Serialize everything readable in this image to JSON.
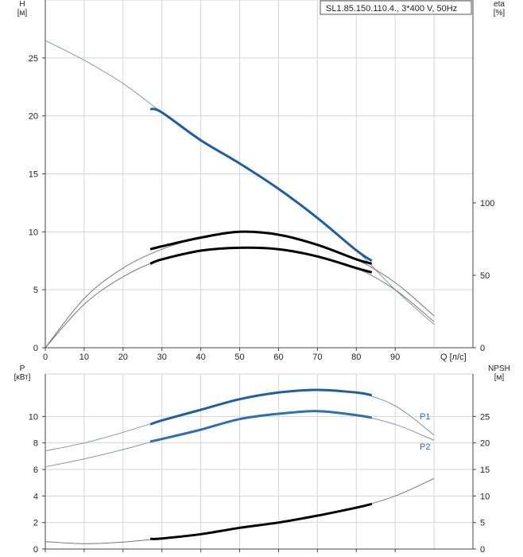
{
  "chart_data": [
    {
      "type": "line",
      "title": "SL1.85.150.110.4., 3*400 V, 50Hz",
      "xlabel": "Q [л/с]",
      "ylabel": "H\n[м]",
      "y2label": "eta\n[%]",
      "xlim": [
        0,
        100
      ],
      "ylim": [
        0,
        30
      ],
      "y2lim": [
        0,
        240
      ],
      "x_ticks": [
        0,
        10,
        20,
        30,
        40,
        50,
        60,
        70,
        80,
        90
      ],
      "y_ticks": [
        0,
        5,
        10,
        15,
        20,
        25
      ],
      "y2_ticks": [
        0,
        50,
        100
      ],
      "grid": true,
      "series": [
        {
          "axis": "left",
          "color": "#8899aa",
          "x": [
            0,
            10,
            20,
            30,
            40,
            50,
            60,
            70,
            80,
            90,
            100
          ],
          "y": [
            26.5,
            24.8,
            22.8,
            20.3,
            17.9,
            15.9,
            13.7,
            11.2,
            8.4,
            5.0,
            2.0
          ]
        },
        {
          "axis": "left",
          "color": "#1f5fa0",
          "x": [
            27,
            30,
            40,
            50,
            60,
            70,
            80,
            84
          ],
          "y": [
            20.6,
            20.3,
            17.9,
            15.9,
            13.7,
            11.2,
            8.4,
            7.5
          ]
        },
        {
          "axis": "right",
          "color": "#777777",
          "x": [
            0,
            10,
            20,
            30,
            40,
            50,
            60,
            70,
            80,
            90,
            100
          ],
          "y": [
            0,
            34,
            55,
            68,
            76,
            80,
            78,
            71,
            61,
            45,
            22
          ]
        },
        {
          "axis": "right",
          "color": "#000000",
          "x": [
            27,
            30,
            40,
            50,
            60,
            70,
            80,
            84
          ],
          "y": [
            68,
            70,
            76,
            80,
            78,
            71,
            61,
            58
          ]
        },
        {
          "axis": "right",
          "color": "#777777",
          "x": [
            0,
            10,
            20,
            30,
            40,
            50,
            60,
            70,
            80,
            90,
            100
          ],
          "y": [
            0,
            30,
            49,
            61,
            67,
            69,
            68,
            63,
            55,
            40,
            18
          ]
        },
        {
          "axis": "right",
          "color": "#000000",
          "x": [
            27,
            30,
            40,
            50,
            60,
            70,
            80,
            84
          ],
          "y": [
            58,
            61,
            67,
            69,
            68,
            63,
            55,
            52
          ]
        }
      ]
    },
    {
      "type": "line",
      "xlabel": "",
      "ylabel": "P\n[кВт]",
      "y2label": "NPSH\n[м]",
      "xlim": [
        0,
        100
      ],
      "ylim": [
        0,
        12
      ],
      "y2lim": [
        0,
        30
      ],
      "x_ticks": [
        0,
        10,
        20,
        30,
        40,
        50,
        60,
        70,
        80,
        90
      ],
      "y_ticks": [
        0,
        2,
        4,
        6,
        8,
        10
      ],
      "y2_ticks": [
        0,
        5,
        10,
        15,
        20,
        25
      ],
      "grid": true,
      "series_labels": [
        "P1",
        "P2"
      ],
      "series": [
        {
          "name": "P1",
          "axis": "left",
          "color": "#7f94b4",
          "x": [
            0,
            10,
            20,
            30,
            40,
            50,
            60,
            70,
            80,
            90,
            100
          ],
          "y": [
            7.4,
            8.0,
            8.8,
            9.7,
            10.5,
            11.3,
            11.8,
            12.0,
            11.8,
            10.8,
            8.6
          ]
        },
        {
          "axis": "left",
          "color": "#1f5fa0",
          "x": [
            27,
            30,
            40,
            50,
            60,
            70,
            80,
            84
          ],
          "y": [
            9.4,
            9.7,
            10.5,
            11.3,
            11.8,
            12.0,
            11.8,
            11.6
          ]
        },
        {
          "name": "P2",
          "axis": "left",
          "color": "#7f94b4",
          "x": [
            0,
            10,
            20,
            30,
            40,
            50,
            60,
            70,
            80,
            90,
            100
          ],
          "y": [
            6.2,
            6.8,
            7.5,
            8.3,
            9.0,
            9.8,
            10.2,
            10.4,
            10.1,
            9.4,
            8.2
          ]
        },
        {
          "axis": "left",
          "color": "#2d6fb0",
          "x": [
            27,
            30,
            40,
            50,
            60,
            70,
            80,
            84
          ],
          "y": [
            8.1,
            8.3,
            9.0,
            9.8,
            10.2,
            10.4,
            10.1,
            9.9
          ]
        },
        {
          "axis": "right",
          "color": "#777777",
          "x": [
            0,
            10,
            20,
            30,
            40,
            50,
            60,
            70,
            80,
            90,
            100
          ],
          "y": [
            1.4,
            1.0,
            1.3,
            2.0,
            2.8,
            4.0,
            5.0,
            6.3,
            7.8,
            10.0,
            13.3
          ]
        },
        {
          "axis": "right",
          "color": "#000000",
          "x": [
            27,
            30,
            40,
            50,
            60,
            70,
            80,
            84
          ],
          "y": [
            1.9,
            2.0,
            2.8,
            4.0,
            5.0,
            6.3,
            7.8,
            8.5
          ]
        }
      ]
    }
  ]
}
